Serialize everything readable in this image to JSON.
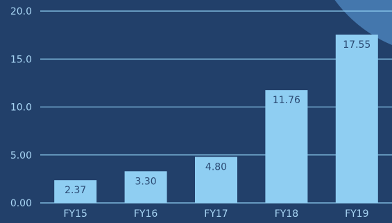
{
  "chart_data": {
    "type": "bar",
    "categories": [
      "FY15",
      "FY16",
      "FY17",
      "FY18",
      "FY19"
    ],
    "values": [
      2.37,
      3.3,
      4.8,
      11.76,
      17.55
    ],
    "value_labels": [
      "2.37",
      "3.30",
      "4.80",
      "11.76",
      "17.55"
    ],
    "yticks": [
      0,
      5,
      10,
      15,
      20
    ],
    "ytick_labels": [
      "0.00",
      "5.00",
      "10.0",
      "15.0",
      "20.0"
    ],
    "ylim": [
      0,
      20
    ],
    "title": "",
    "xlabel": "",
    "ylabel": "",
    "grid": true,
    "colors": {
      "background": "#22406a",
      "bar": "#8fcef2",
      "gridline": "#8fcef2",
      "axis_text": "#a9d6f5",
      "data_label": "#2b4a73",
      "corner_decoration": "#4477ad"
    }
  }
}
